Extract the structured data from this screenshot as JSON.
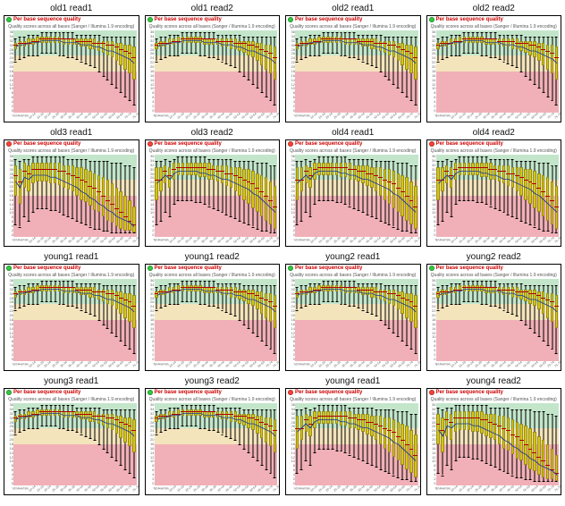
{
  "global": {
    "panel_header_text": "Per base sequence quality",
    "plot_title": "Quality scores across all bases (Sanger / Illumina 1.9 encoding)",
    "xaxis_label": "Position in read (bp)",
    "ymax": 40,
    "yticks": [
      0,
      2,
      4,
      6,
      8,
      10,
      12,
      14,
      16,
      18,
      20,
      22,
      24,
      26,
      28,
      30,
      32,
      34,
      36
    ],
    "zone_colors": {
      "green": "#c3e6cb",
      "yellow": "#f4e4bc",
      "red": "#f1b0b7"
    },
    "zone_thresholds": {
      "good_min": 28,
      "ok_min": 20
    },
    "box_color": "#d4c41a",
    "median_color": "#b00000",
    "mean_color": "#1f3a93",
    "xpositions": [
      1,
      2,
      3,
      4,
      5,
      6,
      7,
      8,
      9,
      "10-14",
      "15-19",
      "20-24",
      "25-29",
      "30-34",
      "35-39",
      "40-44",
      "45-49",
      "50-54",
      "55-59",
      "60-64",
      "65-69",
      "70-74",
      "75-79",
      "80-84",
      "85-89",
      "90-94",
      "95-99",
      "100"
    ]
  },
  "profiles": {
    "A": {
      "median": [
        33,
        34,
        34,
        34,
        35,
        35,
        36,
        36,
        36,
        36,
        36,
        36,
        36,
        36,
        35,
        35,
        35,
        35,
        34,
        34,
        34,
        33,
        33,
        32,
        31,
        30,
        29,
        27
      ],
      "q1": [
        31,
        32,
        32,
        33,
        33,
        34,
        34,
        34,
        34,
        34,
        34,
        33,
        33,
        33,
        33,
        32,
        32,
        31,
        31,
        30,
        29,
        28,
        27,
        25,
        23,
        21,
        19,
        16
      ],
      "q3": [
        34,
        35,
        35,
        36,
        36,
        37,
        37,
        37,
        37,
        37,
        37,
        36,
        36,
        36,
        36,
        36,
        36,
        36,
        36,
        35,
        35,
        35,
        35,
        34,
        34,
        33,
        33,
        32
      ],
      "wlow": [
        25,
        26,
        27,
        28,
        28,
        28,
        29,
        29,
        29,
        29,
        28,
        28,
        27,
        27,
        26,
        25,
        24,
        23,
        22,
        20,
        18,
        16,
        14,
        12,
        10,
        8,
        6,
        4
      ],
      "whigh": [
        36,
        37,
        37,
        38,
        38,
        38,
        39,
        39,
        39,
        39,
        39,
        39,
        39,
        39,
        38,
        38,
        38,
        38,
        38,
        38,
        37,
        37,
        37,
        37,
        37,
        37,
        37,
        37
      ],
      "mean": [
        32,
        33,
        33,
        34,
        34,
        34,
        35,
        35,
        35,
        35,
        35,
        34,
        34,
        34,
        34,
        33,
        33,
        33,
        32,
        32,
        31,
        30,
        30,
        29,
        28,
        27,
        26,
        24
      ]
    },
    "B": {
      "median": [
        28,
        28,
        32,
        30,
        33,
        34,
        34,
        34,
        34,
        34,
        34,
        34,
        33,
        33,
        32,
        32,
        31,
        31,
        30,
        29,
        28,
        27,
        26,
        24,
        22,
        20,
        18,
        15
      ],
      "q1": [
        18,
        22,
        26,
        24,
        28,
        30,
        30,
        30,
        30,
        30,
        29,
        29,
        28,
        28,
        27,
        26,
        25,
        24,
        22,
        20,
        18,
        16,
        14,
        12,
        10,
        8,
        6,
        4
      ],
      "q3": [
        34,
        34,
        35,
        34,
        36,
        36,
        36,
        36,
        36,
        36,
        36,
        36,
        36,
        35,
        35,
        35,
        35,
        34,
        34,
        34,
        33,
        33,
        32,
        31,
        30,
        29,
        27,
        25
      ],
      "wlow": [
        6,
        8,
        12,
        10,
        16,
        18,
        18,
        18,
        18,
        17,
        17,
        16,
        15,
        14,
        13,
        12,
        11,
        10,
        9,
        8,
        7,
        6,
        5,
        4,
        3,
        3,
        2,
        2
      ],
      "whigh": [
        37,
        37,
        38,
        37,
        38,
        39,
        39,
        39,
        39,
        39,
        39,
        39,
        38,
        38,
        38,
        38,
        38,
        38,
        37,
        37,
        37,
        37,
        37,
        36,
        36,
        36,
        35,
        35
      ],
      "mean": [
        26,
        28,
        30,
        28,
        31,
        32,
        32,
        32,
        32,
        32,
        31,
        31,
        30,
        30,
        29,
        28,
        28,
        27,
        26,
        25,
        24,
        23,
        21,
        20,
        18,
        16,
        14,
        12
      ]
    },
    "C": {
      "median": [
        30,
        27,
        32,
        31,
        33,
        33,
        33,
        33,
        33,
        33,
        32,
        32,
        31,
        30,
        29,
        28,
        27,
        25,
        24,
        22,
        20,
        18,
        16,
        14,
        12,
        10,
        8,
        6
      ],
      "q1": [
        20,
        16,
        24,
        22,
        26,
        27,
        27,
        27,
        26,
        26,
        25,
        24,
        23,
        22,
        20,
        18,
        17,
        15,
        13,
        12,
        10,
        8,
        7,
        5,
        4,
        3,
        3,
        2
      ],
      "q3": [
        35,
        33,
        36,
        35,
        36,
        36,
        36,
        36,
        36,
        36,
        36,
        35,
        35,
        35,
        34,
        34,
        33,
        32,
        31,
        30,
        29,
        28,
        26,
        24,
        22,
        20,
        18,
        15
      ],
      "wlow": [
        6,
        5,
        10,
        8,
        12,
        14,
        14,
        14,
        13,
        13,
        12,
        11,
        10,
        9,
        8,
        7,
        6,
        5,
        4,
        4,
        3,
        3,
        2,
        2,
        2,
        2,
        2,
        2
      ],
      "whigh": [
        38,
        37,
        38,
        38,
        39,
        39,
        39,
        39,
        39,
        39,
        39,
        39,
        38,
        38,
        38,
        38,
        38,
        37,
        37,
        37,
        37,
        37,
        36,
        36,
        36,
        35,
        35,
        34
      ],
      "mean": [
        27,
        24,
        29,
        28,
        30,
        30,
        30,
        30,
        29,
        29,
        28,
        27,
        26,
        25,
        24,
        22,
        21,
        19,
        18,
        16,
        15,
        13,
        12,
        10,
        9,
        8,
        7,
        5
      ]
    }
  },
  "cells": [
    {
      "title": "old1 read1",
      "status": "pass",
      "profile": "A"
    },
    {
      "title": "old1 read2",
      "status": "pass",
      "profile": "A"
    },
    {
      "title": "old2 read1",
      "status": "pass",
      "profile": "A"
    },
    {
      "title": "old2 read2",
      "status": "pass",
      "profile": "A"
    },
    {
      "title": "old3 read1",
      "status": "fail",
      "profile": "C"
    },
    {
      "title": "old3 read2",
      "status": "fail",
      "profile": "B"
    },
    {
      "title": "old4 read1",
      "status": "fail",
      "profile": "B"
    },
    {
      "title": "old4 read2",
      "status": "fail",
      "profile": "B"
    },
    {
      "title": "young1 read1",
      "status": "pass",
      "profile": "A"
    },
    {
      "title": "young1 read2",
      "status": "pass",
      "profile": "A"
    },
    {
      "title": "young2 read1",
      "status": "pass",
      "profile": "A"
    },
    {
      "title": "young2 read2",
      "status": "pass",
      "profile": "A"
    },
    {
      "title": "young3 read1",
      "status": "pass",
      "profile": "A"
    },
    {
      "title": "young3 read2",
      "status": "pass",
      "profile": "A"
    },
    {
      "title": "young4 read1",
      "status": "fail",
      "profile": "B"
    },
    {
      "title": "young4 read2",
      "status": "fail",
      "profile": "C"
    }
  ]
}
